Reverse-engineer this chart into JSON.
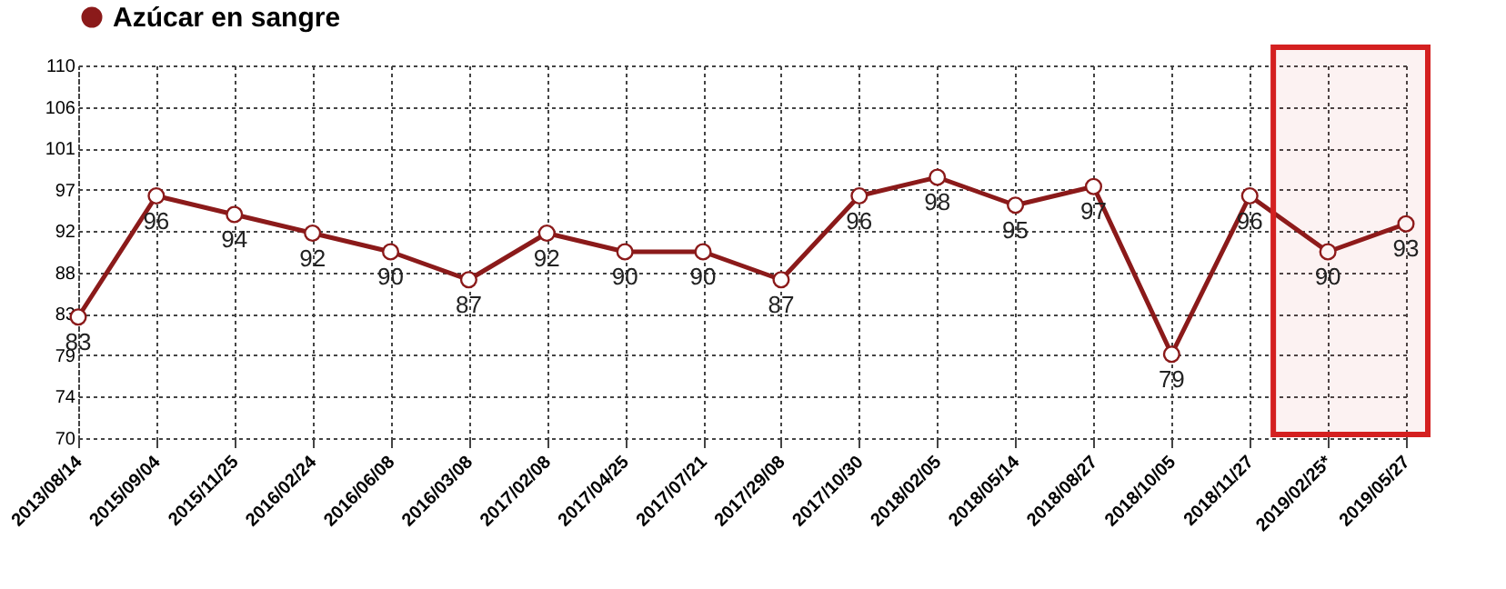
{
  "chart_data": {
    "type": "line",
    "categories": [
      "2013/08/14",
      "2015/09/04",
      "2015/11/25",
      "2016/02/24",
      "2016/06/08",
      "2016/03/08",
      "2017/02/08",
      "2017/04/25",
      "2017/07/21",
      "2017/29/08",
      "2017/10/30",
      "2018/02/05",
      "2018/05/14",
      "2018/08/27",
      "2018/10/05",
      "2018/11/27",
      "2019/02/25*",
      "2019/05/27"
    ],
    "series": [
      {
        "name": "Azúcar en sangre",
        "color": "#8b1a1a",
        "values": [
          83,
          96,
          94,
          92,
          90,
          87,
          92,
          90,
          90,
          87,
          96,
          98,
          95,
          97,
          79,
          96,
          90,
          93
        ]
      }
    ],
    "ylim": [
      70,
      110
    ],
    "yticks": [
      {
        "value": 70,
        "label": "70"
      },
      {
        "value": 74.44,
        "label": "74"
      },
      {
        "value": 78.89,
        "label": "79"
      },
      {
        "value": 83.33,
        "label": "83"
      },
      {
        "value": 87.78,
        "label": "88"
      },
      {
        "value": 92.22,
        "label": "92"
      },
      {
        "value": 96.67,
        "label": "97"
      },
      {
        "value": 101.11,
        "label": "101"
      },
      {
        "value": 105.56,
        "label": "106"
      },
      {
        "value": 110,
        "label": "110"
      }
    ],
    "bands": [
      {
        "axis": "x",
        "from": "2019/02/25*",
        "to": "2019/05/27",
        "color": "#d42020"
      }
    ],
    "grid": true,
    "legend": "top",
    "marker": "circle",
    "line_style": "solid",
    "data_labels": true
  }
}
